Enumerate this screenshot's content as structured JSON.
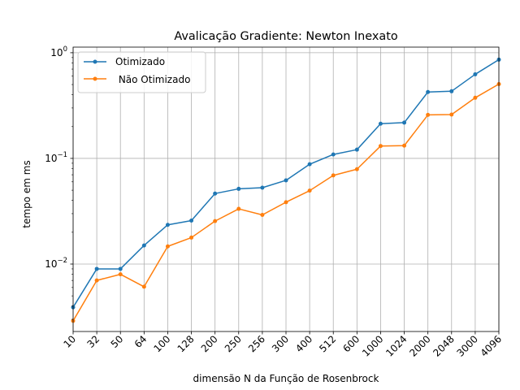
{
  "chart_data": {
    "type": "line",
    "title": "Avalicação Gradiente:  Newton Inexato",
    "xlabel": "dimensão N da Função de Rosenbrock",
    "ylabel": "tempo em ms",
    "y_scale": "log",
    "ylim": [
      0.0023,
      1.13
    ],
    "y_ticks": [
      {
        "value": 0.01,
        "base": "10",
        "exp": "−2"
      },
      {
        "value": 0.1,
        "base": "10",
        "exp": "−1"
      },
      {
        "value": 1,
        "base": "10",
        "exp": "0"
      }
    ],
    "categories": [
      "10",
      "32",
      "50",
      "64",
      "100",
      "128",
      "200",
      "250",
      "256",
      "300",
      "400",
      "512",
      "600",
      "1000",
      "1024",
      "2000",
      "2048",
      "3000",
      "4096"
    ],
    "grid": true,
    "legend_position": "upper left",
    "series": [
      {
        "name": "Otimizado",
        "color": "#1f77b4",
        "values": [
          0.0039,
          0.009,
          0.009,
          0.015,
          0.0235,
          0.0258,
          0.0465,
          0.0515,
          0.0528,
          0.062,
          0.088,
          0.109,
          0.121,
          0.213,
          0.218,
          0.425,
          0.432,
          0.625,
          0.86
        ]
      },
      {
        "name": " Não Otimizado",
        "color": "#ff7f0e",
        "values": [
          0.0029,
          0.007,
          0.008,
          0.0061,
          0.0147,
          0.0178,
          0.0255,
          0.0333,
          0.0292,
          0.0385,
          0.0495,
          0.069,
          0.079,
          0.131,
          0.132,
          0.258,
          0.26,
          0.375,
          0.505
        ]
      }
    ]
  }
}
